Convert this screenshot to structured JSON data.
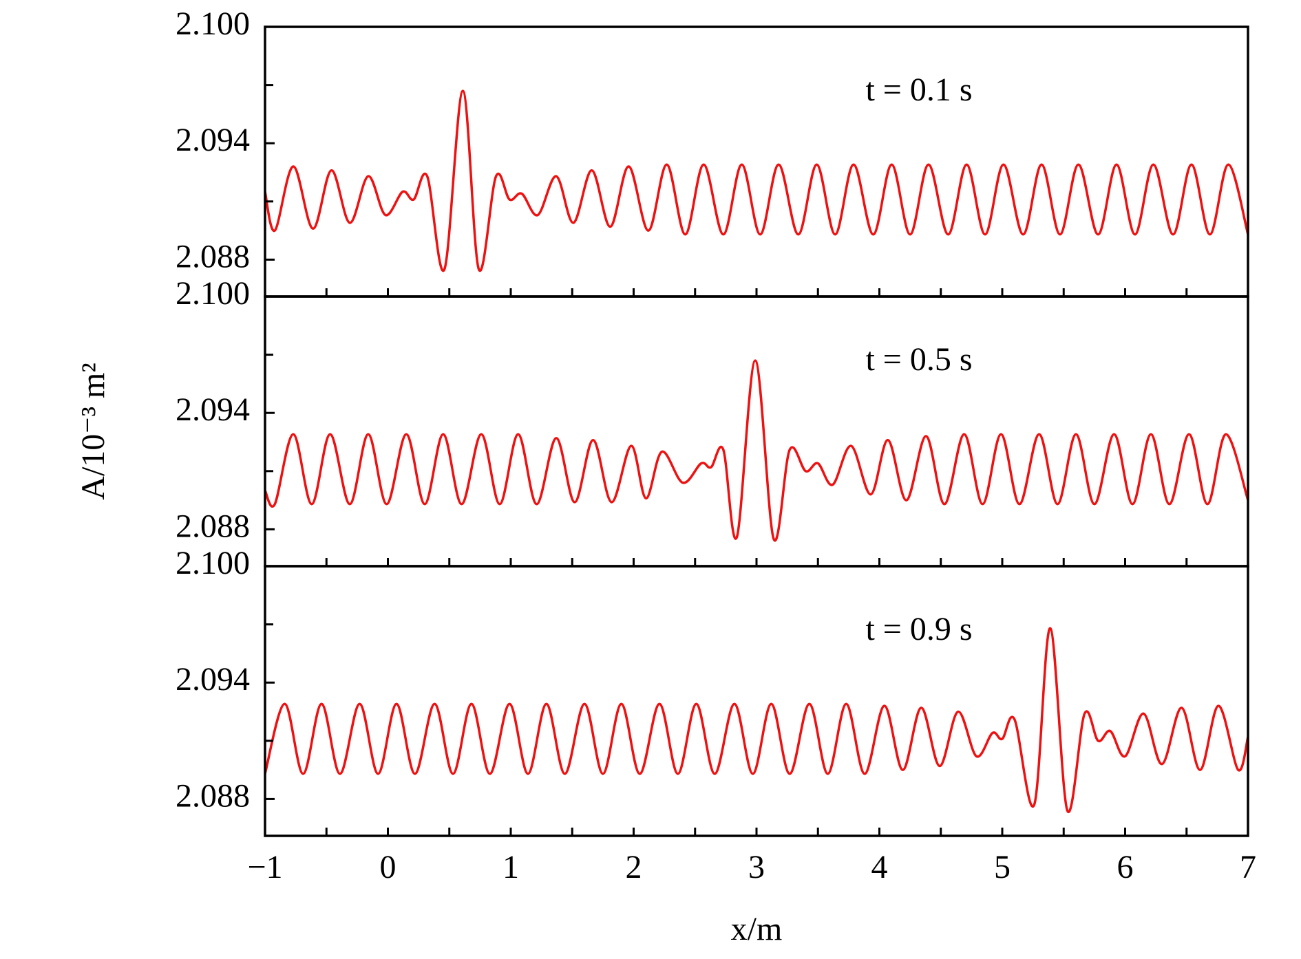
{
  "chart_data": [
    {
      "type": "line",
      "annotation": "t = 0.1 s",
      "color": "#ee1111",
      "x": [
        -1,
        -0.92,
        -0.77,
        -0.61,
        -0.46,
        -0.31,
        -0.16,
        -0.02,
        0.12,
        0.21,
        0.32,
        0.46,
        0.61,
        0.74,
        0.88,
        0.99,
        1.09,
        1.22,
        1.37,
        1.51,
        1.66,
        1.81,
        1.96,
        2.12,
        2.27,
        2.42,
        2.57,
        2.73,
        2.88,
        3.03,
        3.18,
        3.34,
        3.49,
        3.64,
        3.79,
        3.95,
        4.1,
        4.25,
        4.4,
        4.56,
        4.71,
        4.86,
        5.01,
        5.17,
        5.32,
        5.47,
        5.62,
        5.78,
        5.93,
        6.08,
        6.23,
        6.39,
        6.54,
        6.69,
        6.84,
        7
      ],
      "values": [
        2.0915,
        2.0895,
        2.0928,
        2.0896,
        2.0926,
        2.0899,
        2.0923,
        2.0903,
        2.0915,
        2.0911,
        2.0923,
        2.0875,
        2.0967,
        2.0875,
        2.0923,
        2.0911,
        2.0914,
        2.0903,
        2.0923,
        2.0899,
        2.0926,
        2.0897,
        2.0928,
        2.0895,
        2.0929,
        2.0893,
        2.0929,
        2.0893,
        2.0929,
        2.0893,
        2.0929,
        2.0893,
        2.0929,
        2.0893,
        2.0929,
        2.0893,
        2.0929,
        2.0893,
        2.0929,
        2.0893,
        2.0929,
        2.0893,
        2.0929,
        2.0893,
        2.0929,
        2.0893,
        2.0929,
        2.0893,
        2.0929,
        2.0893,
        2.0929,
        2.0893,
        2.0929,
        2.0893,
        2.0929,
        2.0893
      ],
      "xlim": [
        -1,
        7
      ],
      "xticks": [
        -1,
        0,
        1,
        2,
        3,
        4,
        5,
        6,
        7
      ],
      "xminor": [
        -0.5,
        0.5,
        1.5,
        2.5,
        3.5,
        4.5,
        5.5,
        6.5
      ],
      "ylim": [
        2.0861,
        2.1
      ],
      "yticks": [
        {
          "value": 2.1,
          "label": "2.100"
        },
        {
          "value": 2.094,
          "label": "2.094"
        },
        {
          "value": 2.088,
          "label": "2.088"
        }
      ],
      "yminor": [
        2.097,
        2.091
      ]
    },
    {
      "type": "line",
      "annotation": "t = 0.5 s",
      "color": "#ee1111",
      "ylabel": "A/10⁻³ m²",
      "x": [
        -1,
        -0.92,
        -0.77,
        -0.62,
        -0.47,
        -0.31,
        -0.16,
        -0.01,
        0.15,
        0.3,
        0.45,
        0.6,
        0.76,
        0.91,
        1.06,
        1.21,
        1.37,
        1.52,
        1.67,
        1.82,
        1.98,
        2.1,
        2.23,
        2.4,
        2.55,
        2.63,
        2.73,
        2.84,
        2.99,
        3.14,
        3.27,
        3.4,
        3.5,
        3.62,
        3.77,
        3.93,
        4.07,
        4.22,
        4.38,
        4.53,
        4.69,
        4.84,
        4.99,
        5.14,
        5.3,
        5.45,
        5.6,
        5.75,
        5.91,
        6.06,
        6.21,
        6.36,
        6.52,
        6.67,
        6.82,
        7
      ],
      "values": [
        2.09,
        2.0893,
        2.0929,
        2.0893,
        2.0929,
        2.0893,
        2.0929,
        2.0893,
        2.0929,
        2.0893,
        2.0929,
        2.0893,
        2.0929,
        2.0893,
        2.0929,
        2.0893,
        2.0927,
        2.0894,
        2.0926,
        2.0894,
        2.0923,
        2.0896,
        2.092,
        2.0904,
        2.0914,
        2.0912,
        2.0921,
        2.0876,
        2.0967,
        2.0875,
        2.0921,
        2.091,
        2.0914,
        2.0903,
        2.0923,
        2.0898,
        2.0926,
        2.0895,
        2.0928,
        2.0893,
        2.0929,
        2.0893,
        2.0929,
        2.0893,
        2.0929,
        2.0893,
        2.0929,
        2.0893,
        2.0929,
        2.0893,
        2.0929,
        2.0893,
        2.0929,
        2.0893,
        2.0929,
        2.0895
      ],
      "xlim": [
        -1,
        7
      ],
      "xticks": [
        -1,
        0,
        1,
        2,
        3,
        4,
        5,
        6,
        7
      ],
      "xminor": [
        -0.5,
        0.5,
        1.5,
        2.5,
        3.5,
        4.5,
        5.5,
        6.5
      ],
      "ylim": [
        2.0861,
        2.1
      ],
      "yticks": [
        {
          "value": 2.1,
          "label": "2.100"
        },
        {
          "value": 2.094,
          "label": "2.094"
        },
        {
          "value": 2.088,
          "label": "2.088"
        }
      ],
      "yminor": [
        2.097,
        2.091
      ]
    },
    {
      "type": "line",
      "annotation": "t = 0.9 s",
      "color": "#ee1111",
      "xlabel": "x/m",
      "x": [
        -1,
        -0.84,
        -0.69,
        -0.54,
        -0.39,
        -0.23,
        -0.08,
        0.07,
        0.22,
        0.38,
        0.53,
        0.68,
        0.83,
        0.99,
        1.14,
        1.29,
        1.44,
        1.6,
        1.75,
        1.9,
        2.05,
        2.21,
        2.36,
        2.51,
        2.66,
        2.82,
        2.97,
        3.12,
        3.27,
        3.43,
        3.58,
        3.73,
        3.88,
        4.04,
        4.19,
        4.34,
        4.49,
        4.64,
        4.79,
        4.92,
        5.0,
        5.1,
        5.26,
        5.39,
        5.53,
        5.67,
        5.78,
        5.88,
        6.0,
        6.15,
        6.3,
        6.46,
        6.61,
        6.76,
        6.92,
        7
      ],
      "values": [
        2.0893,
        2.0929,
        2.0893,
        2.0929,
        2.0893,
        2.0929,
        2.0893,
        2.0929,
        2.0893,
        2.0929,
        2.0893,
        2.0929,
        2.0893,
        2.0929,
        2.0893,
        2.0929,
        2.0893,
        2.0929,
        2.0893,
        2.0929,
        2.0893,
        2.0929,
        2.0893,
        2.0929,
        2.0893,
        2.0929,
        2.0893,
        2.0929,
        2.0893,
        2.0929,
        2.0893,
        2.0929,
        2.0893,
        2.0928,
        2.0895,
        2.0927,
        2.0897,
        2.0925,
        2.0902,
        2.0914,
        2.0911,
        2.0921,
        2.0877,
        2.0968,
        2.0874,
        2.0924,
        2.091,
        2.0915,
        2.0902,
        2.0924,
        2.0898,
        2.0927,
        2.0895,
        2.0928,
        2.0895,
        2.0912
      ],
      "xlim": [
        -1,
        7
      ],
      "xticks": [
        {
          "value": -1,
          "label": "−1"
        },
        0,
        1,
        2,
        3,
        4,
        5,
        6,
        7
      ],
      "xminor": [
        -0.5,
        0.5,
        1.5,
        2.5,
        3.5,
        4.5,
        5.5,
        6.5
      ],
      "ylim": [
        2.0861,
        2.1
      ],
      "yticks": [
        {
          "value": 2.1,
          "label": "2.100"
        },
        {
          "value": 2.094,
          "label": "2.094"
        },
        {
          "value": 2.088,
          "label": "2.088"
        }
      ],
      "yminor": [
        2.097,
        2.091
      ]
    }
  ]
}
